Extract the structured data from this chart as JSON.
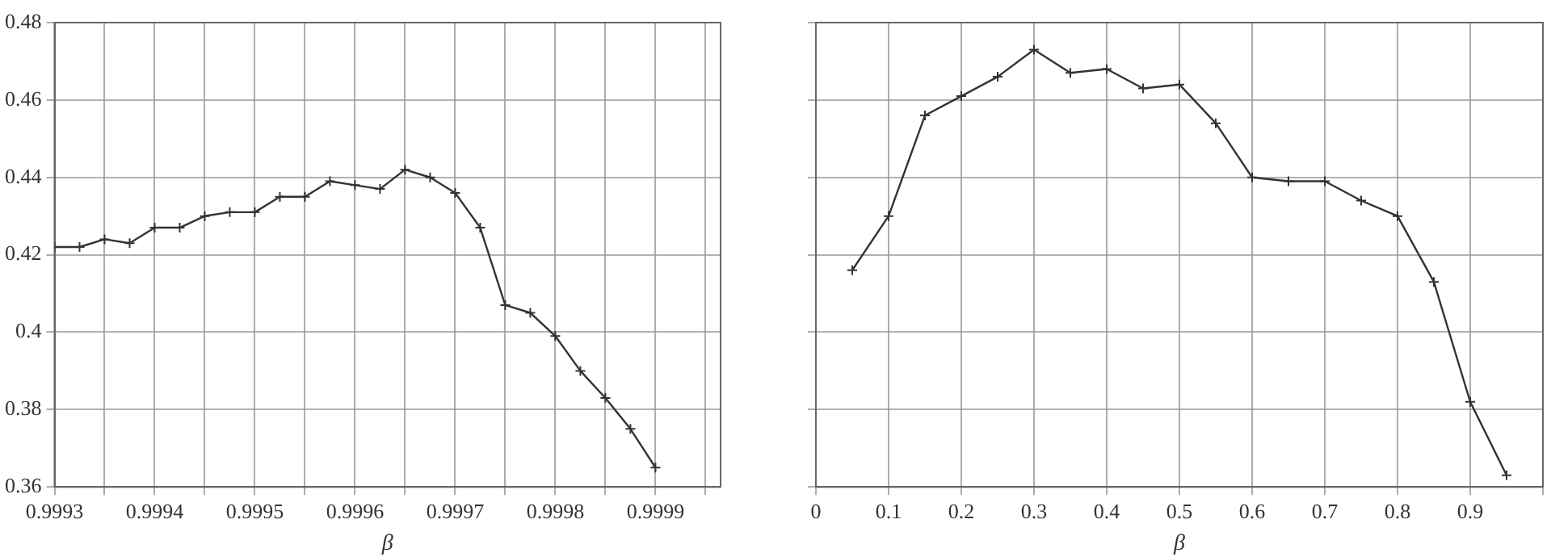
{
  "chart_data": [
    {
      "type": "line",
      "xlabel": "β",
      "x": [
        0.9993,
        0.999325,
        0.99935,
        0.999375,
        0.9994,
        0.999425,
        0.99945,
        0.999475,
        0.9995,
        0.999525,
        0.99955,
        0.999575,
        0.9996,
        0.999625,
        0.99965,
        0.999675,
        0.9997,
        0.999725,
        0.99975,
        0.999775,
        0.9998,
        0.999825,
        0.99985,
        0.999875,
        0.9999
      ],
      "series": [
        {
          "color": "#333333",
          "values": [
            0.422,
            0.422,
            0.424,
            0.423,
            0.427,
            0.427,
            0.43,
            0.431,
            0.431,
            0.435,
            0.435,
            0.439,
            0.438,
            0.437,
            0.442,
            0.44,
            0.436,
            0.427,
            0.407,
            0.405,
            0.399,
            0.39,
            0.383,
            0.375,
            0.365
          ]
        }
      ],
      "xlim": [
        0.9993,
        0.999965
      ],
      "xticks": [
        0.9993,
        {
          "value": 0.99935,
          "label": null
        },
        0.9994,
        {
          "value": 0.99945,
          "label": null
        },
        0.9995,
        {
          "value": 0.99955,
          "label": null
        },
        0.9996,
        {
          "value": 0.99965,
          "label": null
        },
        0.9997,
        {
          "value": 0.99975,
          "label": null
        },
        0.9998,
        {
          "value": 0.99985,
          "label": null
        },
        0.9999,
        {
          "value": 0.99995,
          "label": null
        }
      ],
      "ylim": [
        0.36,
        0.48
      ],
      "yticks": [
        0.36,
        0.38,
        {
          "value": 0.4,
          "label": "0.4"
        },
        0.42,
        0.44,
        0.46,
        0.48
      ],
      "grid": true,
      "marker": "cross",
      "line_style": "solid"
    },
    {
      "type": "line",
      "xlabel": "β",
      "x": [
        0.05,
        0.1,
        0.15,
        0.2,
        0.25,
        0.3,
        0.35,
        0.4,
        0.45,
        0.5,
        0.55,
        0.6,
        0.65,
        0.7,
        0.75,
        0.8,
        0.85,
        0.9,
        0.95
      ],
      "series": [
        {
          "color": "#333333",
          "values": [
            0.416,
            0.43,
            0.456,
            0.461,
            0.466,
            0.473,
            0.467,
            0.468,
            0.463,
            0.464,
            0.454,
            0.44,
            0.439,
            0.439,
            0.434,
            0.43,
            0.413,
            0.382,
            0.363
          ]
        }
      ],
      "xlim": [
        0,
        1
      ],
      "xticks": [
        0,
        0.1,
        0.2,
        0.3,
        0.4,
        0.5,
        0.6,
        0.7,
        0.8,
        0.9,
        {
          "value": 1,
          "label": null
        }
      ],
      "ylim": [
        0.36,
        0.48
      ],
      "yticks": [
        0.36,
        0.38,
        0.4,
        0.42,
        0.44,
        0.46,
        0.48
      ],
      "tick_labels": "x",
      "grid": true,
      "marker": "cross",
      "line_style": "solid"
    }
  ]
}
